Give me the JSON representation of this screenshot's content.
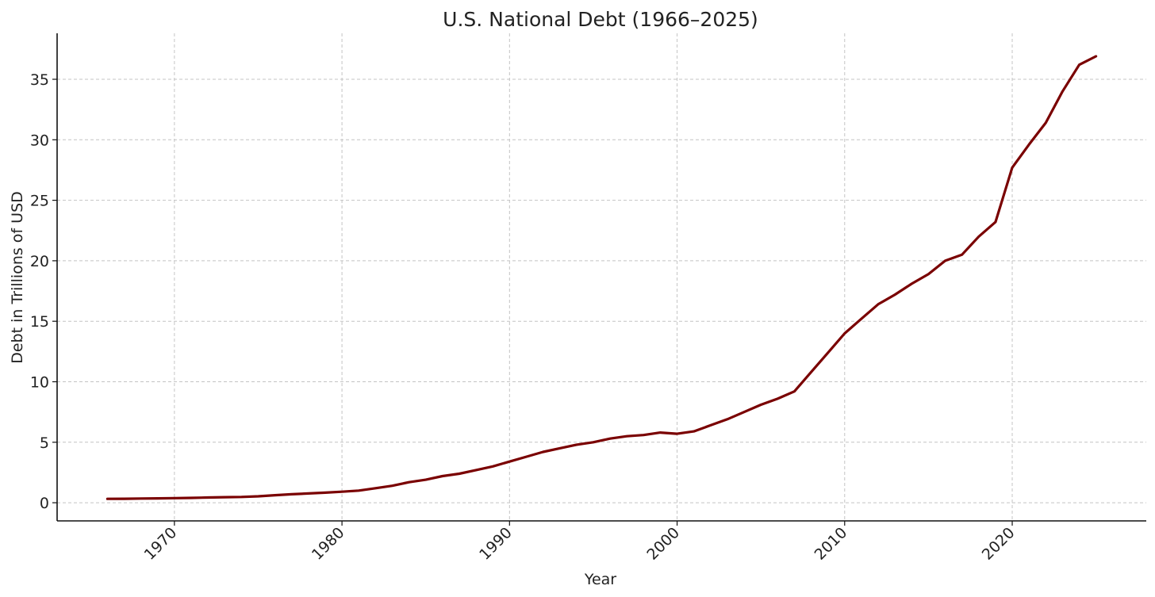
{
  "chart_data": {
    "type": "line",
    "title": "U.S. National Debt (1966–2025)",
    "xlabel": "Year",
    "ylabel": "Debt in Trillions of USD",
    "xlim": [
      1963,
      2028
    ],
    "ylim": [
      -1.5,
      38.8
    ],
    "x_ticks": [
      1970,
      1980,
      1990,
      2000,
      2010,
      2020
    ],
    "x_tick_labels": [
      "1970",
      "1980",
      "1990",
      "2000",
      "2010",
      "2020"
    ],
    "y_ticks": [
      0,
      5,
      10,
      15,
      20,
      25,
      30,
      35
    ],
    "y_tick_labels": [
      "0",
      "5",
      "10",
      "15",
      "20",
      "25",
      "30",
      "35"
    ],
    "grid": true,
    "line_color": "#7a0000",
    "series": [
      {
        "x": [
          1966,
          1967,
          1968,
          1969,
          1970,
          1971,
          1972,
          1973,
          1974,
          1975,
          1976,
          1977,
          1978,
          1979,
          1980,
          1981,
          1982,
          1983,
          1984,
          1985,
          1986,
          1987,
          1988,
          1989,
          1990,
          1991,
          1992,
          1993,
          1994,
          1995,
          1996,
          1997,
          1998,
          1999,
          2000,
          2001,
          2002,
          2003,
          2004,
          2005,
          2006,
          2007,
          2008,
          2009,
          2010,
          2011,
          2012,
          2013,
          2014,
          2015,
          2016,
          2017,
          2018,
          2019,
          2020,
          2021,
          2022,
          2023,
          2024,
          2025
        ],
        "values": [
          0.32,
          0.33,
          0.35,
          0.36,
          0.38,
          0.4,
          0.43,
          0.46,
          0.48,
          0.53,
          0.62,
          0.7,
          0.77,
          0.83,
          0.91,
          1.0,
          1.2,
          1.4,
          1.7,
          1.9,
          2.2,
          2.4,
          2.7,
          3.0,
          3.4,
          3.8,
          4.2,
          4.5,
          4.8,
          5.0,
          5.3,
          5.5,
          5.6,
          5.8,
          5.7,
          5.9,
          6.4,
          6.9,
          7.5,
          8.1,
          8.6,
          9.2,
          10.8,
          12.4,
          14.0,
          15.2,
          16.4,
          17.2,
          18.1,
          18.9,
          20.0,
          20.5,
          22.0,
          23.2,
          27.7,
          29.6,
          31.4,
          34.0,
          36.2,
          36.9
        ]
      }
    ]
  }
}
